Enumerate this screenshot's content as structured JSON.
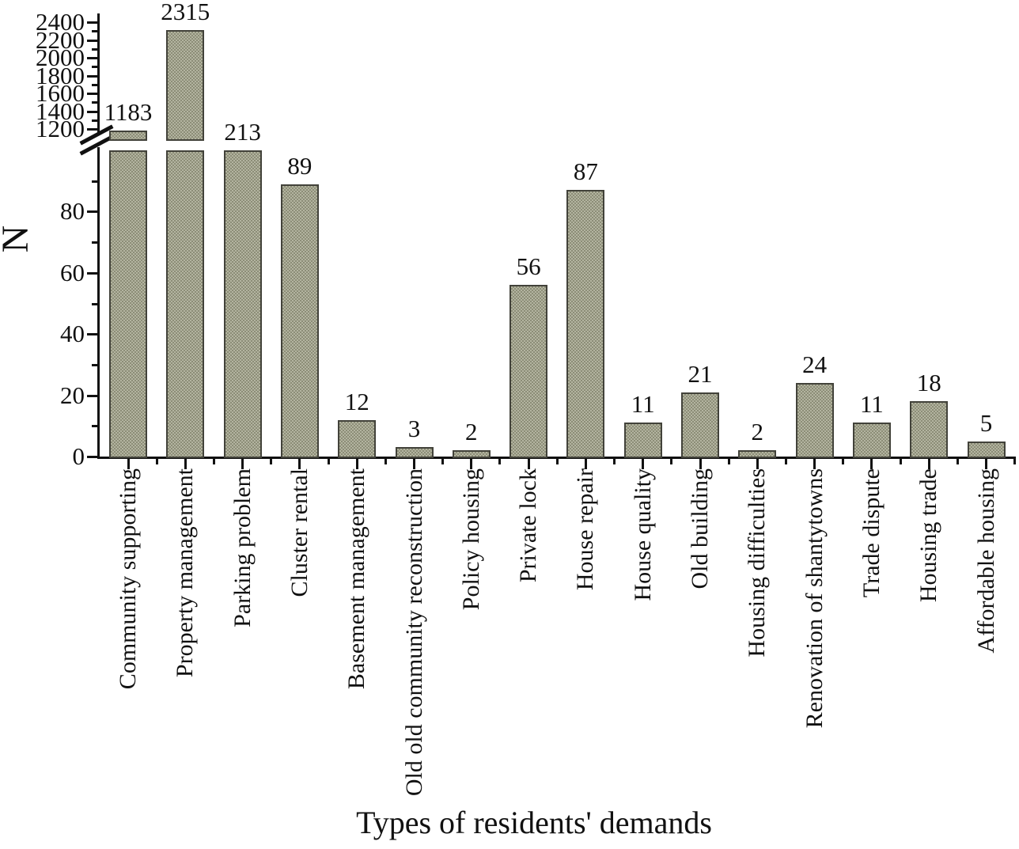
{
  "chart_data": {
    "type": "bar",
    "title": "",
    "xlabel": "Types of residents' demands",
    "ylabel": "N",
    "categories": [
      "Community supporting",
      "Property management",
      "Parking problem",
      "Cluster rental",
      "Basement management",
      "Old old community reconstruction",
      "Policy housing",
      "Private lock",
      "House repair",
      "House quality",
      "Old building",
      "Housing difficulties",
      "Renovation of shantytowns",
      "Trade dispute",
      "Housing trade",
      "Affordable housing"
    ],
    "values": [
      1183,
      2315,
      213,
      89,
      12,
      3,
      2,
      56,
      87,
      11,
      21,
      2,
      24,
      11,
      18,
      5
    ],
    "bar_value_labels": [
      "1183",
      "2315",
      "213",
      "89",
      "12",
      "3",
      "2",
      "56",
      "87",
      "11",
      "21",
      "2",
      "24",
      "11",
      "18",
      "5"
    ],
    "axis_break": true,
    "lower_axis": {
      "min": 0,
      "max": 100,
      "major_ticks": [
        0,
        20,
        40,
        60,
        80
      ],
      "minor_ticks": [
        10,
        30,
        50,
        70,
        90
      ]
    },
    "upper_axis": {
      "major_ticks": [
        1200,
        1400,
        1600,
        1800,
        2000,
        2200,
        2400
      ],
      "minor_ticks": [
        1300,
        1500,
        1700,
        1900,
        2100,
        2300,
        2500
      ]
    },
    "grid": false,
    "legend": false,
    "bar_fill_color": "#9fa08c",
    "bar_border_color": "#42423a",
    "axis_color": "#111111",
    "background_color": "#ffffff"
  }
}
